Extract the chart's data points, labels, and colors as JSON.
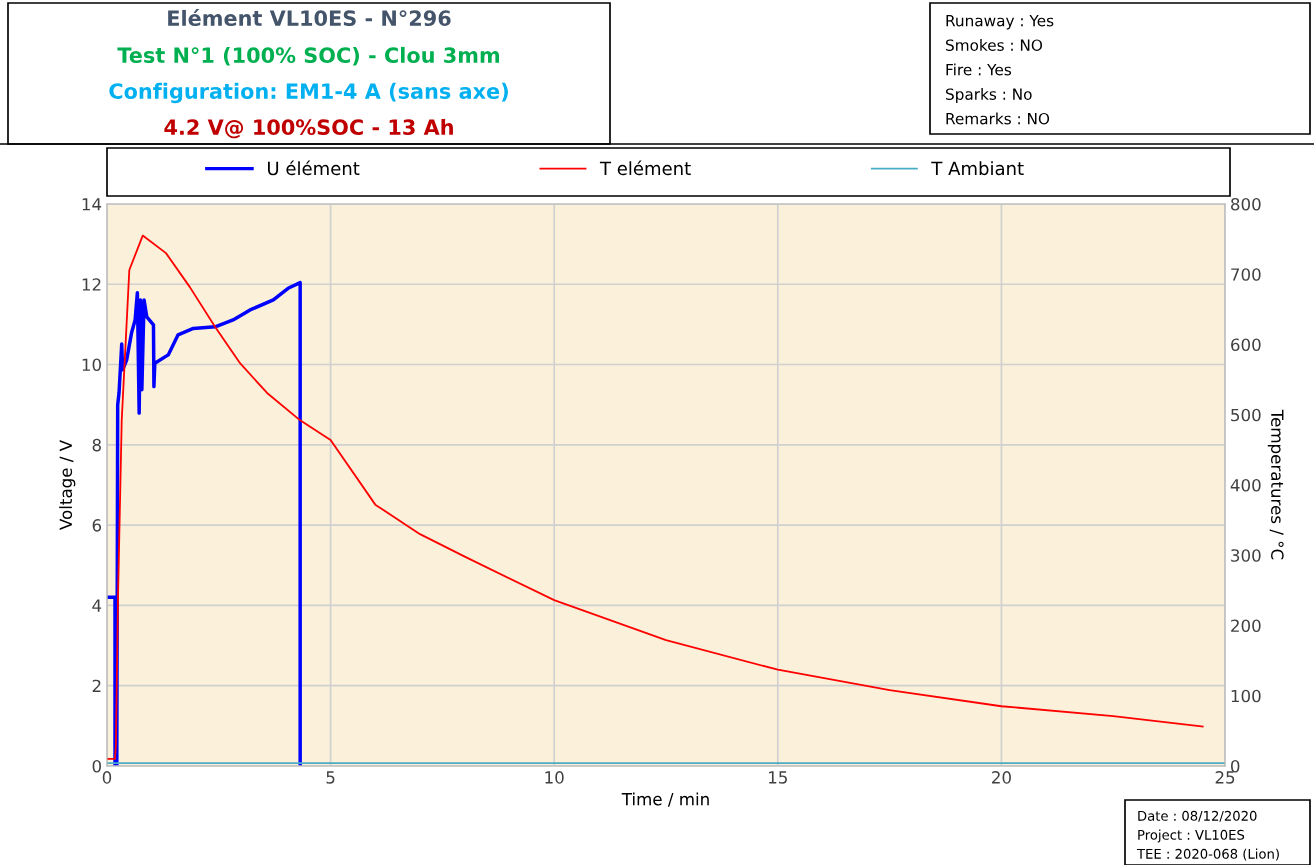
{
  "chart_data": {
    "type": "line",
    "title": "Elément VL10ES - N°296",
    "xlabel": "Time / min",
    "ylabel": "Voltage / V",
    "y2label": "Temperatures / °C",
    "annotations": [
      "Test N°1 (100% SOC) - Clou 3mm",
      "Configuration: EM1-4 A (sans axe)",
      "4.2 V@ 100%SOC - 13 Ah",
      "Runaway : Yes",
      "Smokes : NO",
      "Fire : Yes",
      "Sparks : No",
      "Remarks : NO",
      "Date : 08/12/2020",
      "Project : VL10ES",
      "TEE : 2020-068 (Lion)"
    ],
    "series": [
      {
        "name": "U élément",
        "color": "#0000ff",
        "x": [
          0,
          0.18,
          0.18,
          0.22,
          0.24,
          0.27,
          0.33,
          0.35,
          0.44,
          0.55,
          0.63,
          0.68,
          0.72,
          0.75,
          0.78,
          0.83,
          0.89,
          1.04,
          1.05,
          1.07,
          1.37,
          1.59,
          1.93,
          2.42,
          2.82,
          3.2,
          3.72,
          4.05,
          4.32,
          4.32
        ],
        "values": [
          4.2,
          4.2,
          0,
          0,
          9.0,
          9.29,
          10.51,
          9.87,
          10.11,
          10.79,
          11.11,
          11.79,
          8.79,
          11.61,
          9.37,
          11.61,
          11.19,
          10.99,
          9.45,
          10.03,
          10.24,
          10.74,
          10.9,
          10.94,
          11.11,
          11.36,
          11.61,
          11.9,
          12.04,
          0
        ]
      },
      {
        "name": "T elément",
        "color": "#ff0000",
        "axis": "y2",
        "x": [
          0,
          0.18,
          0.2,
          0.25,
          0.33,
          0.5,
          0.8,
          1.32,
          1.85,
          2.42,
          2.98,
          3.58,
          4.32,
          5,
          6,
          7,
          8,
          10,
          12.5,
          15,
          17.5,
          20,
          22.5,
          24.5
        ],
        "values": [
          10,
          10,
          30,
          250,
          492,
          706,
          755,
          730,
          682,
          625,
          573,
          531,
          492,
          464,
          372,
          330,
          298,
          236,
          179,
          137,
          108,
          85,
          71,
          56
        ]
      },
      {
        "name": "T Ambiant",
        "color": "#4bacc6",
        "axis": "y2",
        "x": [
          0,
          25
        ],
        "values": [
          4,
          4
        ]
      }
    ],
    "xlim": [
      0,
      25
    ],
    "xticks": [
      0,
      5,
      10,
      15,
      20,
      25
    ],
    "ylim": [
      0,
      14
    ],
    "yticks": [
      0,
      2,
      4,
      6,
      8,
      10,
      12,
      14
    ],
    "y2lim": [
      0,
      800
    ],
    "y2ticks": [
      0,
      100,
      200,
      300,
      400,
      500,
      600,
      700,
      800
    ],
    "grid": true,
    "legend": "top",
    "line_style": "solid",
    "marker": "none"
  }
}
